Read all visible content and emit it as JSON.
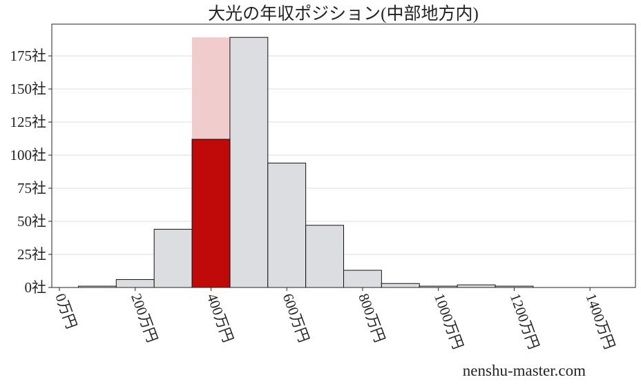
{
  "chart_data": {
    "type": "histogram",
    "title": "大光の年収ポジション(中部地方内)",
    "bins": [
      50,
      150,
      250,
      350,
      450,
      550,
      650,
      750,
      850,
      950,
      1050,
      1150,
      1250
    ],
    "values": [
      1,
      6,
      44,
      189,
      189,
      94,
      47,
      13,
      3,
      1,
      2,
      1
    ],
    "color": "#dcdde0",
    "edge_color": "#111111",
    "highlight_bins": [
      350,
      450
    ],
    "highlight_value": 112,
    "highlight_color": "#c00a0a",
    "highlight_band_color": "#f0cccc",
    "xlim": [
      -20,
      1520
    ],
    "ylim": [
      0,
      199
    ],
    "xticks": [
      {
        "value": 0,
        "label": "0万円"
      },
      {
        "value": 200,
        "label": "200万円"
      },
      {
        "value": 400,
        "label": "400万円"
      },
      {
        "value": 600,
        "label": "600万円"
      },
      {
        "value": 800,
        "label": "800万円"
      },
      {
        "value": 1000,
        "label": "1000万円"
      },
      {
        "value": 1200,
        "label": "1200万円"
      },
      {
        "value": 1400,
        "label": "1400万円"
      }
    ],
    "yticks": [
      {
        "value": 0,
        "label": "0社"
      },
      {
        "value": 25,
        "label": "25社"
      },
      {
        "value": 50,
        "label": "50社"
      },
      {
        "value": 75,
        "label": "75社"
      },
      {
        "value": 100,
        "label": "100社"
      },
      {
        "value": 125,
        "label": "125社"
      },
      {
        "value": 150,
        "label": "150社"
      },
      {
        "value": 175,
        "label": "175社"
      }
    ],
    "grid": true,
    "watermark": "nenshu-master.com"
  }
}
